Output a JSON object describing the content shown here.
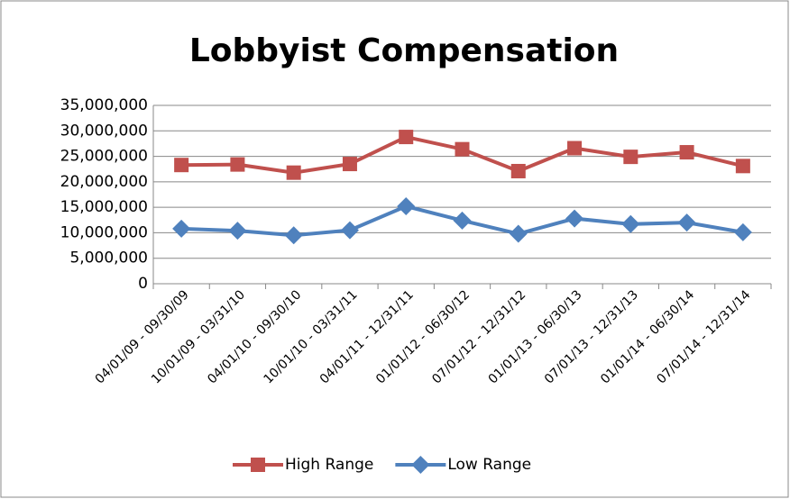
{
  "chart_data": {
    "type": "line",
    "title": "Lobbyist Compensation",
    "categories": [
      "04/01/09 - 09/30/09",
      "10/01/09 - 03/31/10",
      "04/01/10 - 09/30/10",
      "10/01/10 - 03/31/11",
      "04/01/11 - 12/31/11",
      "01/01/12 - 06/30/12",
      "07/01/12 - 12/31/12",
      "01/01/13 - 06/30/13",
      "07/01/13 - 12/31/13",
      "01/01/14 - 06/30/14",
      "07/01/14 - 12/31/14"
    ],
    "series": [
      {
        "name": "High Range",
        "color": "#c0504d",
        "marker": "square",
        "values": [
          23300000,
          23400000,
          21800000,
          23500000,
          28800000,
          26400000,
          22100000,
          26600000,
          24900000,
          25800000,
          23100000
        ]
      },
      {
        "name": "Low Range",
        "color": "#4f81bd",
        "marker": "diamond",
        "values": [
          10800000,
          10400000,
          9500000,
          10500000,
          15200000,
          12400000,
          9800000,
          12800000,
          11700000,
          12000000,
          10100000
        ]
      }
    ],
    "ylim": [
      0,
      35000000
    ],
    "yticks": [
      0,
      {
        "value": 5000000,
        "label": "5,000,000"
      },
      {
        "value": 10000000,
        "label": "10,000,000"
      },
      {
        "value": 15000000,
        "label": "15,000,000"
      },
      {
        "value": 20000000,
        "label": "20,000,000"
      },
      {
        "value": 25000000,
        "label": "25,000,000"
      },
      {
        "value": 30000000,
        "label": "30,000,000"
      },
      {
        "value": 35000000,
        "label": "35,000,000"
      }
    ],
    "grid": true,
    "legend": "bottom"
  }
}
